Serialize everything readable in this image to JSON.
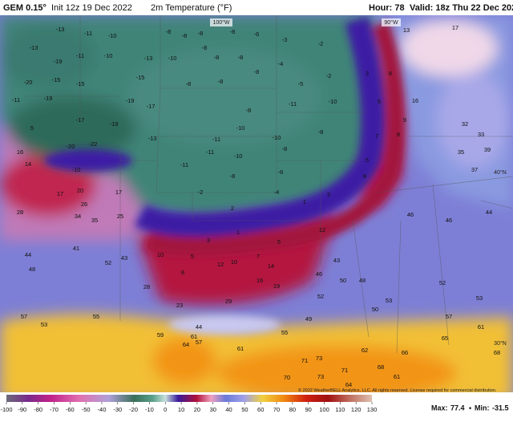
{
  "header": {
    "model": "GEM 0.15°",
    "init": "Init 12z 19 Dec 2022",
    "field": "2m Temperature (°F)",
    "hour": "Hour: 78",
    "valid": "Valid: 18z Thu 22 Dec 2022"
  },
  "grid_labels": {
    "lon_100": "100°W",
    "lon_90": "90°W",
    "lat_40": "40°N",
    "lat_30": "30°N"
  },
  "map_values": [
    -13,
    -11,
    -10,
    -8,
    -8,
    -8,
    -8,
    -6,
    -3,
    -2,
    -13,
    -19,
    -11,
    -10,
    -13,
    -10,
    -8,
    -8,
    -8,
    -4,
    -20,
    -15,
    -15,
    -15,
    -8,
    -8,
    -8,
    -5,
    -2,
    -11,
    -19,
    -19,
    -17,
    -8,
    -11,
    -10,
    -17,
    -19,
    -13,
    -10,
    -11,
    -10,
    -8,
    -20,
    -22,
    -11,
    -10,
    -8,
    -10,
    -11,
    -8,
    -6,
    -2,
    -4,
    2,
    1,
    13,
    17,
    3,
    8,
    16,
    5,
    9,
    8,
    7,
    5,
    8,
    3,
    32,
    33,
    35,
    39,
    37,
    5,
    16,
    14,
    17,
    17,
    20,
    26,
    28,
    34,
    25,
    35,
    44,
    48,
    52,
    43,
    41,
    3,
    1,
    5,
    10,
    5,
    8,
    12,
    10,
    14,
    16,
    19,
    28,
    23,
    29,
    12,
    7,
    46,
    46,
    44,
    43,
    46,
    50,
    48,
    52,
    50,
    53,
    52,
    53,
    57,
    53,
    55,
    59,
    61,
    57,
    64,
    61,
    55,
    49,
    44,
    66,
    62,
    68,
    61,
    71,
    70,
    73,
    71,
    64,
    65,
    61,
    68,
    57,
    73
  ],
  "colorbar_ticks": [
    -100,
    -90,
    -80,
    -70,
    -60,
    -50,
    -40,
    -30,
    -20,
    -10,
    0,
    10,
    20,
    30,
    40,
    50,
    60,
    70,
    80,
    90,
    100,
    110,
    120,
    130
  ],
  "footer": {
    "copyright": "© 2022 WeatherBELL Analytics, LLC. All rights reserved. License required for commercial distribution.",
    "max_label": "Max:",
    "max": 77.4,
    "min_label": "Min:",
    "min": -31.5
  }
}
